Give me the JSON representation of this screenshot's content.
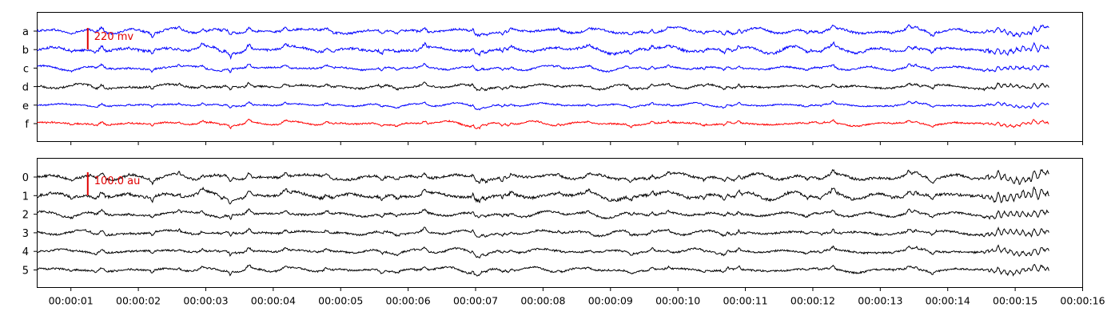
{
  "colors": {
    "blue": "#0000ff",
    "black": "#000000",
    "red": "#ff0000",
    "scale_bar": "#e00000",
    "axes": "#000000",
    "background": "#ffffff"
  },
  "chart_data": [
    {
      "type": "line",
      "panel": "top",
      "title": "",
      "xlabel": "",
      "ylabel": "",
      "channels": [
        {
          "label": "a",
          "color": "#0000ff",
          "amp": 1.4
        },
        {
          "label": "b",
          "color": "#0000ff",
          "amp": 1.6
        },
        {
          "label": "c",
          "color": "#0000ff",
          "amp": 1.1
        },
        {
          "label": "d",
          "color": "#000000",
          "amp": 1.2
        },
        {
          "label": "e",
          "color": "#0000ff",
          "amp": 0.9
        },
        {
          "label": "f",
          "color": "#ff0000",
          "amp": 1.0
        }
      ],
      "scale_bar": {
        "label": "220 mv",
        "time": "00:00:01.25"
      },
      "xlim": [
        "00:00:00.5",
        "00:00:16"
      ],
      "x_start_sec": 0.5,
      "x_end_sec": 16,
      "signal_start_sec": 0.5,
      "signal_end_sec": 15.5,
      "grid": false
    },
    {
      "type": "line",
      "panel": "bottom",
      "title": "",
      "xlabel": "",
      "ylabel": "",
      "channels": [
        {
          "label": "0",
          "color": "#000000",
          "amp": 1.6
        },
        {
          "label": "1",
          "color": "#000000",
          "amp": 1.8
        },
        {
          "label": "2",
          "color": "#000000",
          "amp": 1.3
        },
        {
          "label": "3",
          "color": "#000000",
          "amp": 1.3
        },
        {
          "label": "4",
          "color": "#000000",
          "amp": 1.2
        },
        {
          "label": "5",
          "color": "#000000",
          "amp": 1.2
        }
      ],
      "scale_bar": {
        "label": "100.0 au",
        "time": "00:00:01.25"
      },
      "xlim": [
        "00:00:00.5",
        "00:00:16"
      ],
      "x_start_sec": 0.5,
      "x_end_sec": 16,
      "signal_start_sec": 0.5,
      "signal_end_sec": 15.5,
      "grid": false,
      "x_ticks": [
        "00:00:01",
        "00:00:02",
        "00:00:03",
        "00:00:04",
        "00:00:05",
        "00:00:06",
        "00:00:07",
        "00:00:08",
        "00:00:09",
        "00:00:10",
        "00:00:11",
        "00:00:12",
        "00:00:13",
        "00:00:14",
        "00:00:15",
        "00:00:16"
      ],
      "x_tick_seconds": [
        1,
        2,
        3,
        4,
        5,
        6,
        7,
        8,
        9,
        10,
        11,
        12,
        13,
        14,
        15,
        16
      ]
    }
  ]
}
